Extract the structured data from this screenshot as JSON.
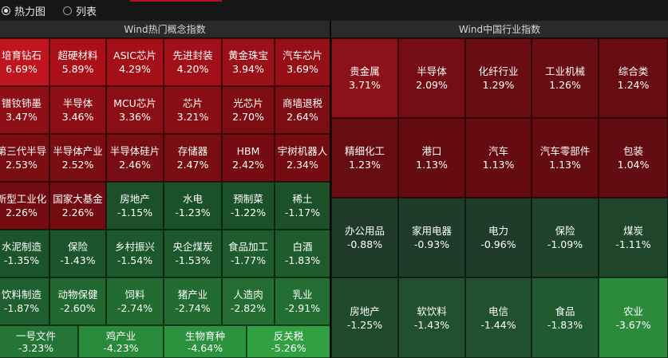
{
  "view_toggle": {
    "heatmap_label": "热力图",
    "list_label": "列表",
    "selected": "heatmap"
  },
  "left_panel": {
    "title": "Wind热门概念指数",
    "rows": [
      [
        {
          "name": "培育钻石",
          "pct": "6.69%",
          "color": "#c0141e"
        },
        {
          "name": "超硬材料",
          "pct": "5.89%",
          "color": "#ab1019"
        },
        {
          "name": "ASIC芯片",
          "pct": "4.29%",
          "color": "#a31018"
        },
        {
          "name": "先进封装",
          "pct": "4.20%",
          "color": "#a11018"
        },
        {
          "name": "黄金珠宝",
          "pct": "3.94%",
          "color": "#9c1017"
        },
        {
          "name": "汽车芯片",
          "pct": "3.69%",
          "color": "#950f16"
        }
      ],
      [
        {
          "name": "镨钕铈墨",
          "pct": "3.47%",
          "color": "#8e0e15"
        },
        {
          "name": "半导体",
          "pct": "3.46%",
          "color": "#8d0e15"
        },
        {
          "name": "MCU芯片",
          "pct": "3.36%",
          "color": "#8b0e15"
        },
        {
          "name": "芯片",
          "pct": "3.21%",
          "color": "#880e14"
        },
        {
          "name": "光芯片",
          "pct": "2.70%",
          "color": "#7d0d13"
        },
        {
          "name": "商墙退税",
          "pct": "2.64%",
          "color": "#7b0d13"
        }
      ],
      [
        {
          "name": "第三代半导",
          "pct": "2.53%",
          "color": "#790d12"
        },
        {
          "name": "半导体产业",
          "pct": "2.52%",
          "color": "#790d12"
        },
        {
          "name": "半导体硅片",
          "pct": "2.46%",
          "color": "#770d12"
        },
        {
          "name": "存储器",
          "pct": "2.47%",
          "color": "#780d12"
        },
        {
          "name": "HBM",
          "pct": "2.42%",
          "color": "#760c12"
        },
        {
          "name": "宇树机器人",
          "pct": "2.34%",
          "color": "#740c11"
        }
      ],
      [
        {
          "name": "新型工业化",
          "pct": "2.26%",
          "color": "#720c11"
        },
        {
          "name": "国家大基金",
          "pct": "2.26%",
          "color": "#720c11"
        },
        {
          "name": "房地产",
          "pct": "-1.15%",
          "color": "#1b5029"
        },
        {
          "name": "水电",
          "pct": "-1.23%",
          "color": "#1b5129"
        },
        {
          "name": "预制菜",
          "pct": "-1.22%",
          "color": "#1b5129"
        },
        {
          "name": "稀土",
          "pct": "-1.17%",
          "color": "#1b5029"
        }
      ],
      [
        {
          "name": "水泥制造",
          "pct": "-1.35%",
          "color": "#1c542b"
        },
        {
          "name": "保险",
          "pct": "-1.43%",
          "color": "#1c552b"
        },
        {
          "name": "乡村振兴",
          "pct": "-1.54%",
          "color": "#1d572c"
        },
        {
          "name": "央企煤炭",
          "pct": "-1.53%",
          "color": "#1d572c"
        },
        {
          "name": "食品加工",
          "pct": "-1.77%",
          "color": "#1e5b2d"
        },
        {
          "name": "白酒",
          "pct": "-1.83%",
          "color": "#1e5c2e"
        }
      ],
      [
        {
          "name": "饮料制造",
          "pct": "-1.87%",
          "color": "#1f5e2e"
        },
        {
          "name": "动物保健",
          "pct": "-2.60%",
          "color": "#216830"
        },
        {
          "name": "饲料",
          "pct": "-2.74%",
          "color": "#226b31"
        },
        {
          "name": "猪产业",
          "pct": "-2.74%",
          "color": "#226b31"
        },
        {
          "name": "人造肉",
          "pct": "-2.82%",
          "color": "#236c32"
        },
        {
          "name": "乳业",
          "pct": "-2.91%",
          "color": "#236e33"
        }
      ],
      [
        {
          "name": "一号文件",
          "pct": "-3.23%",
          "color": "#257536"
        },
        {
          "name": "鸡产业",
          "pct": "-4.23%",
          "color": "#2a8a3b"
        },
        {
          "name": "生物育种",
          "pct": "-4.64%",
          "color": "#2c923e"
        },
        {
          "name": "反关税",
          "pct": "-5.26%",
          "color": "#30a043"
        }
      ]
    ]
  },
  "right_panel": {
    "title": "Wind中国行业指数",
    "rows": [
      [
        {
          "name": "贵金属",
          "pct": "3.71%",
          "color": "#8c1119"
        },
        {
          "name": "半导体",
          "pct": "2.09%",
          "color": "#740e14"
        },
        {
          "name": "化纤行业",
          "pct": "1.29%",
          "color": "#680d12"
        },
        {
          "name": "工业机械",
          "pct": "1.26%",
          "color": "#680d12"
        },
        {
          "name": "综合类",
          "pct": "1.24%",
          "color": "#670d12"
        }
      ],
      [
        {
          "name": "精细化工",
          "pct": "1.23%",
          "color": "#670d12"
        },
        {
          "name": "港口",
          "pct": "1.13%",
          "color": "#650c11"
        },
        {
          "name": "汽车",
          "pct": "1.13%",
          "color": "#650c11"
        },
        {
          "name": "汽车零部件",
          "pct": "1.13%",
          "color": "#650c11"
        },
        {
          "name": "包装",
          "pct": "1.04%",
          "color": "#630c11"
        }
      ],
      [
        {
          "name": "办公用品",
          "pct": "-0.88%",
          "color": "#1f3a29"
        },
        {
          "name": "家用电器",
          "pct": "-0.93%",
          "color": "#1f3b29"
        },
        {
          "name": "电力",
          "pct": "-0.96%",
          "color": "#1f3c2a"
        },
        {
          "name": "保险",
          "pct": "-1.09%",
          "color": "#1f442b"
        },
        {
          "name": "煤炭",
          "pct": "-1.11%",
          "color": "#1f452b"
        }
      ],
      [
        {
          "name": "房地产",
          "pct": "-1.25%",
          "color": "#1f4a2c"
        },
        {
          "name": "软饮料",
          "pct": "-1.43%",
          "color": "#20502d"
        },
        {
          "name": "电信",
          "pct": "-1.44%",
          "color": "#20502d"
        },
        {
          "name": "食品",
          "pct": "-1.83%",
          "color": "#215a30"
        },
        {
          "name": "农业",
          "pct": "-3.67%",
          "color": "#2b8a3c"
        }
      ]
    ]
  }
}
